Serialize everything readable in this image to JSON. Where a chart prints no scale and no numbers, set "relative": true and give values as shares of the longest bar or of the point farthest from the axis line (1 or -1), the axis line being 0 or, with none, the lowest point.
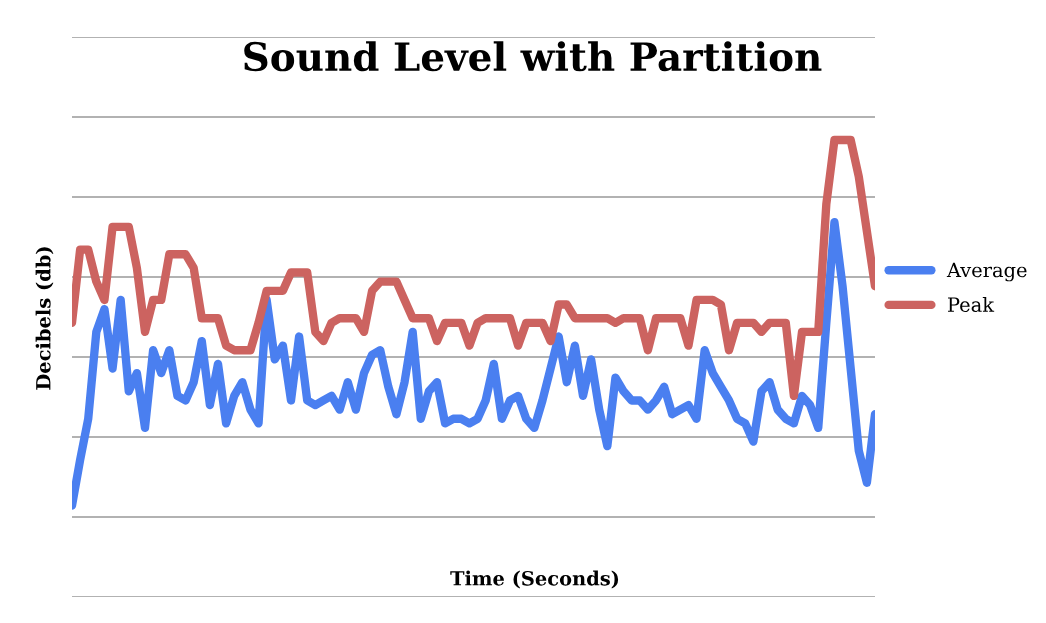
{
  "chart_data": {
    "type": "line",
    "title": "Sound Level with Partition",
    "xlabel": "Time (Seconds)",
    "ylabel": "Decibels (db)",
    "relative": true,
    "grid": "y",
    "legend": "right",
    "line_style": "solid",
    "marker": "none",
    "categories": [
      null,
      null,
      null,
      null,
      null,
      null,
      null,
      null,
      null,
      null,
      null,
      null,
      null,
      null,
      null,
      null,
      null,
      null,
      null,
      null,
      null,
      null,
      null,
      null,
      null,
      null,
      null,
      null,
      null,
      null,
      null,
      null,
      null,
      null,
      null,
      null,
      null,
      null,
      null,
      null,
      null,
      null,
      null,
      null,
      null,
      null,
      null,
      null,
      null,
      null,
      null,
      null,
      null,
      null,
      null,
      null,
      null,
      null,
      null,
      null,
      null,
      null,
      null,
      null,
      null,
      null,
      null,
      null,
      null,
      null,
      null,
      null,
      null,
      null,
      null,
      null,
      null,
      null,
      null,
      null,
      null,
      null,
      null,
      null,
      null,
      null,
      null,
      null,
      null,
      null,
      null,
      null,
      null,
      null,
      null,
      null,
      null,
      null,
      null,
      null
    ],
    "series": [
      {
        "name": "Average",
        "color": "#4a7ff0",
        "values": [
          0.2,
          0.3,
          0.39,
          0.58,
          0.63,
          0.5,
          0.65,
          0.45,
          0.49,
          0.37,
          0.54,
          0.49,
          0.54,
          0.44,
          0.43,
          0.47,
          0.56,
          0.42,
          0.51,
          0.38,
          0.44,
          0.47,
          0.41,
          0.38,
          0.65,
          0.52,
          0.55,
          0.43,
          0.57,
          0.43,
          0.42,
          0.43,
          0.44,
          0.41,
          0.47,
          0.41,
          0.49,
          0.53,
          0.54,
          0.46,
          0.4,
          0.47,
          0.58,
          0.39,
          0.45,
          0.47,
          0.38,
          0.39,
          0.39,
          0.38,
          0.39,
          0.43,
          0.51,
          0.39,
          0.43,
          0.44,
          0.39,
          0.37,
          0.43,
          0.5,
          0.57,
          0.47,
          0.55,
          0.44,
          0.52,
          0.41,
          0.33,
          0.48,
          0.45,
          0.43,
          0.43,
          0.41,
          0.43,
          0.46,
          0.4,
          0.41,
          0.42,
          0.39,
          0.54,
          0.49,
          0.46,
          0.43,
          0.39,
          0.38,
          0.34,
          0.45,
          0.47,
          0.41,
          0.39,
          0.38,
          0.44,
          0.42,
          0.37,
          0.6,
          0.82,
          0.68,
          0.5,
          0.32,
          0.25,
          0.4
        ]
      },
      {
        "name": "Peak",
        "color": "#cc6360",
        "values": [
          0.6,
          0.76,
          0.76,
          0.69,
          0.65,
          0.81,
          0.81,
          0.81,
          0.72,
          0.58,
          0.65,
          0.65,
          0.75,
          0.75,
          0.75,
          0.72,
          0.61,
          0.61,
          0.61,
          0.55,
          0.54,
          0.54,
          0.54,
          0.6,
          0.67,
          0.67,
          0.67,
          0.71,
          0.71,
          0.71,
          0.58,
          0.56,
          0.6,
          0.61,
          0.61,
          0.61,
          0.58,
          0.67,
          0.69,
          0.69,
          0.69,
          0.65,
          0.61,
          0.61,
          0.61,
          0.56,
          0.6,
          0.6,
          0.6,
          0.55,
          0.6,
          0.61,
          0.61,
          0.61,
          0.61,
          0.55,
          0.6,
          0.6,
          0.6,
          0.56,
          0.64,
          0.64,
          0.61,
          0.61,
          0.61,
          0.61,
          0.61,
          0.6,
          0.61,
          0.61,
          0.61,
          0.54,
          0.61,
          0.61,
          0.61,
          0.61,
          0.55,
          0.65,
          0.65,
          0.65,
          0.64,
          0.54,
          0.6,
          0.6,
          0.6,
          0.58,
          0.6,
          0.6,
          0.6,
          0.44,
          0.58,
          0.58,
          0.58,
          0.86,
          1.0,
          1.0,
          1.0,
          0.92,
          0.8,
          0.68
        ]
      }
    ]
  }
}
